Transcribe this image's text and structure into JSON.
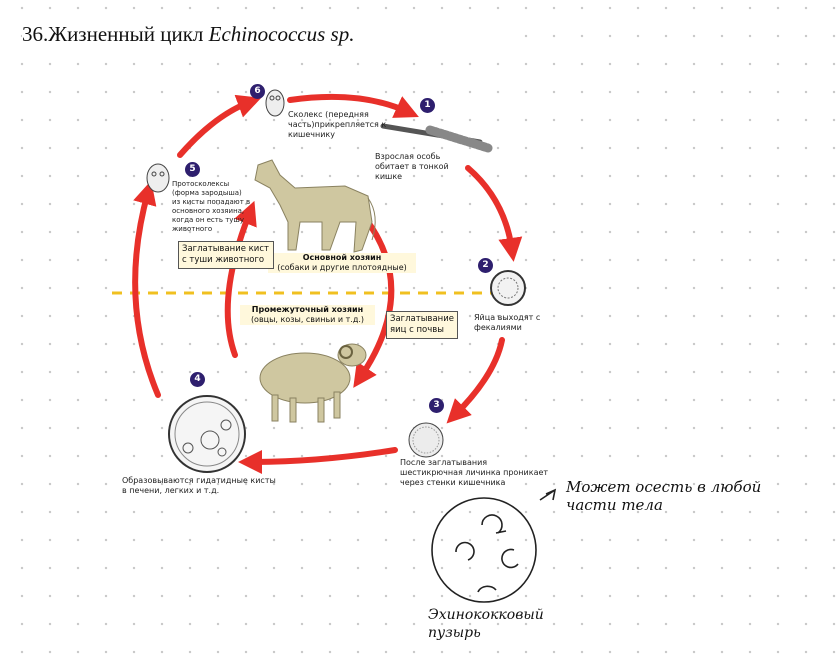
{
  "title": {
    "number": "36.",
    "text_ru": "Жизненный цикл",
    "species": "Echinococcus sp."
  },
  "stages": [
    {
      "num": "1",
      "text": "Взрослая особь обитает в тонкой кишке"
    },
    {
      "num": "2",
      "text": "Яйца выходят с фекалиями"
    },
    {
      "num": "3",
      "text": "После заглатывания шестикрючная личинка проникает через стенки кишечника"
    },
    {
      "num": "4",
      "text": "Образовываются гидатидные кисты в печени, легких и т.д."
    },
    {
      "num": "5",
      "text": "Протосколексы (форма зародыша) из кисты попадают в основного хозяина, когда он есть тушу животного"
    },
    {
      "num": "6",
      "text": "Сколекс (передняя часть)прикрепляется к кишечнику"
    }
  ],
  "hosts": {
    "definitive_title": "Основной хозяин",
    "definitive_sub": "(собаки и другие плотоядные)",
    "intermediate_title": "Промежуточный хозяин",
    "intermediate_sub": "(овцы, козы, свиньи и т.д.)"
  },
  "boxes": {
    "swallow_cysts": "Заглатывание кист с туши животного",
    "swallow_eggs": "Заглатывание яиц с почвы"
  },
  "handwriting": {
    "note": "Может осесть в любой части тела",
    "bubble_label": "Эхинококковый пузырь"
  },
  "colors": {
    "arrow": "#e8302a",
    "badge": "#2e1f6e",
    "divider": "#f0c020",
    "box_fill": "#fff8dc",
    "animal": "#cfc7a0"
  }
}
